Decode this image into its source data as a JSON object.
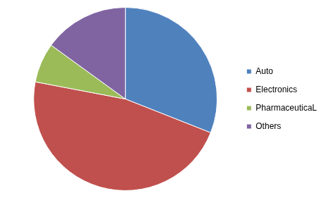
{
  "chart_data": {
    "type": "pie",
    "categories": [
      "Auto",
      "Electronics",
      "PharmaceuticaL",
      "Others"
    ],
    "values": [
      31,
      47,
      7,
      15
    ],
    "colors": [
      "#4f81bd",
      "#c0504d",
      "#9bbb59",
      "#8064a2"
    ],
    "legend": "right"
  }
}
